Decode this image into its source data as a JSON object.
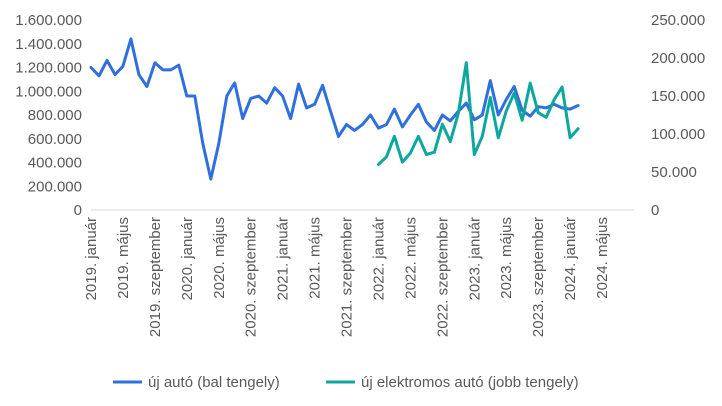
{
  "chart_data": {
    "type": "line",
    "title": "",
    "xlabel": "",
    "ylabel": "",
    "x_tick_labels": [
      "2019. január",
      "2019. május",
      "2019. szeptember",
      "2020. január",
      "2020. május",
      "2020. szeptember",
      "2021. január",
      "2021. május",
      "2021. szeptember",
      "2022. január",
      "2022. május",
      "2022. szeptember",
      "2023. január",
      "2023. május",
      "2023. szeptember",
      "2024. január",
      "2024. május"
    ],
    "y_left": {
      "min": 0,
      "max": 1600000,
      "step": 200000,
      "tick_labels": [
        "0",
        "200.000",
        "400.000",
        "600.000",
        "800.000",
        "1.000.000",
        "1.200.000",
        "1.400.000",
        "1.600.000"
      ]
    },
    "y_right": {
      "min": 0,
      "max": 250000,
      "step": 50000,
      "tick_labels": [
        "0",
        "50.000",
        "100.000",
        "150.000",
        "200.000",
        "250.000"
      ]
    },
    "grid": false,
    "legend_position": "bottom",
    "series": [
      {
        "name": "új autó (bal tengely)",
        "axis": "left",
        "color": "#2f6fde",
        "start": "2019-01",
        "values": [
          1200000,
          1130000,
          1260000,
          1140000,
          1210000,
          1440000,
          1140000,
          1040000,
          1240000,
          1180000,
          1180000,
          1220000,
          960000,
          960000,
          560000,
          260000,
          560000,
          960000,
          1070000,
          770000,
          940000,
          960000,
          900000,
          1030000,
          960000,
          770000,
          1060000,
          860000,
          890000,
          1050000,
          830000,
          620000,
          720000,
          670000,
          720000,
          800000,
          690000,
          720000,
          850000,
          700000,
          800000,
          890000,
          740000,
          670000,
          800000,
          750000,
          830000,
          900000,
          760000,
          800000,
          1090000,
          800000,
          930000,
          1040000,
          840000,
          790000,
          870000,
          860000,
          890000,
          860000,
          850000,
          880000
        ]
      },
      {
        "name": "új elektromos autó (jobb tengely)",
        "axis": "right",
        "color": "#0ca79e",
        "start": "2022-01",
        "values": [
          60000,
          70000,
          97000,
          63000,
          75000,
          97000,
          73000,
          76000,
          113000,
          90000,
          127000,
          194000,
          73000,
          97000,
          148000,
          95000,
          130000,
          154000,
          118000,
          167000,
          128000,
          122000,
          145000,
          162000,
          95000,
          107000
        ]
      }
    ]
  }
}
